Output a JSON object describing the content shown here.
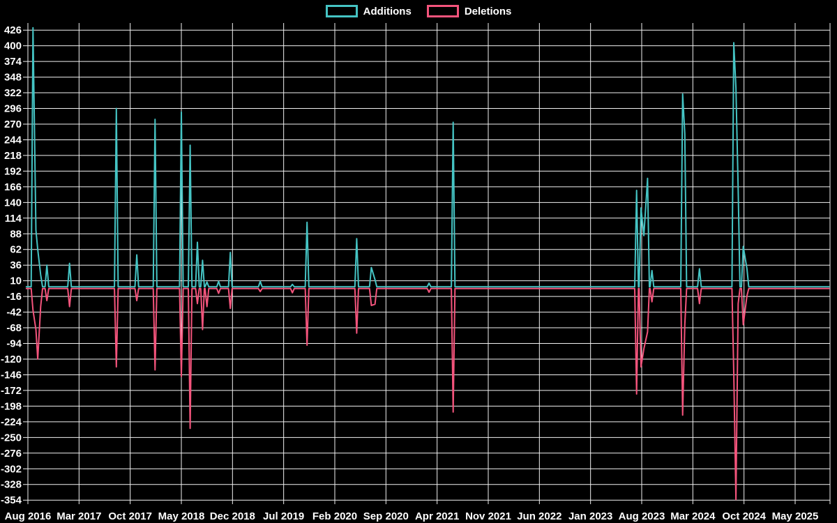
{
  "page": {
    "background": "#000000",
    "text_color": "#ffffff"
  },
  "chart_data": {
    "type": "line",
    "title": "",
    "legend_position": "top-center",
    "grid": "on",
    "grid_color": "#f2f2f2",
    "text_color": "#ffffff",
    "series": [
      {
        "name": "Additions",
        "color": "#45c4c4"
      },
      {
        "name": "Deletions",
        "color": "#f4547c"
      }
    ],
    "x_axis": {
      "unit": "months (7-month tick interval)",
      "tick_labels": [
        "Aug 2016",
        "Mar 2017",
        "Oct 2017",
        "May 2018",
        "Dec 2018",
        "Jul 2019",
        "Feb 2020",
        "Sep 2020",
        "Apr 2021",
        "Nov 2021",
        "Jun 2022",
        "Jan 2023",
        "Aug 2023",
        "Mar 2024",
        "Oct 2024",
        "May 2025"
      ]
    },
    "y_axis": {
      "max": 426,
      "min": -354,
      "step": 26,
      "tick_labels": [
        "426",
        "400",
        "374",
        "348",
        "322",
        "296",
        "270",
        "244",
        "218",
        "192",
        "166",
        "140",
        "114",
        "88",
        "62",
        "36",
        "10",
        "-16",
        "-42",
        "-68",
        "-94",
        "-120",
        "-146",
        "-172",
        "-198",
        "-224",
        "-250",
        "-276",
        "-302",
        "-328",
        "-354"
      ]
    },
    "x_domain_months": [
      -0.3,
      109.7
    ],
    "points": [
      {
        "m": 0.7,
        "add": 430,
        "del": -36
      },
      {
        "m": 1.1,
        "add": 94,
        "del": -68
      },
      {
        "m": 1.35,
        "add": 62,
        "del": -117
      },
      {
        "m": 1.75,
        "add": 20,
        "del": -30
      },
      {
        "m": 2.6,
        "add": 36,
        "del": -20
      },
      {
        "m": 5.7,
        "add": 39,
        "del": -30
      },
      {
        "m": 12.1,
        "add": 296,
        "del": -130
      },
      {
        "m": 14.9,
        "add": 53,
        "del": -20
      },
      {
        "m": 17.4,
        "add": 278,
        "del": -135
      },
      {
        "m": 21.0,
        "add": 290,
        "del": -146
      },
      {
        "m": 22.2,
        "add": 235,
        "del": -232
      },
      {
        "m": 23.2,
        "add": 74,
        "del": -25
      },
      {
        "m": 23.9,
        "add": 44,
        "del": -68
      },
      {
        "m": 24.5,
        "add": 8,
        "del": -30
      },
      {
        "m": 26.1,
        "add": 9,
        "del": -8
      },
      {
        "m": 27.7,
        "add": 57,
        "del": -33
      },
      {
        "m": 31.8,
        "add": 9,
        "del": -5
      },
      {
        "m": 36.2,
        "add": 4,
        "del": -7
      },
      {
        "m": 38.2,
        "add": 107,
        "del": -94
      },
      {
        "m": 45.0,
        "add": 80,
        "del": -74
      },
      {
        "m": 47.0,
        "add": 32,
        "del": -28
      },
      {
        "m": 47.5,
        "add": 12,
        "del": -26
      },
      {
        "m": 54.9,
        "add": 6,
        "del": -6
      },
      {
        "m": 58.2,
        "add": 273,
        "del": -205
      },
      {
        "m": 83.3,
        "add": 160,
        "del": -175
      },
      {
        "m": 83.9,
        "add": 131,
        "del": -130
      },
      {
        "m": 84.3,
        "add": 85,
        "del": -100
      },
      {
        "m": 84.8,
        "add": 180,
        "del": -72
      },
      {
        "m": 85.4,
        "add": 27,
        "del": -22
      },
      {
        "m": 89.6,
        "add": 320,
        "del": -210
      },
      {
        "m": 89.9,
        "add": 254,
        "del": -60
      },
      {
        "m": 91.9,
        "add": 30,
        "del": -25
      },
      {
        "m": 96.6,
        "add": 405,
        "del": -140
      },
      {
        "m": 96.9,
        "add": 330,
        "del": -350
      },
      {
        "m": 97.2,
        "add": 163,
        "del": -25
      },
      {
        "m": 97.9,
        "add": 67,
        "del": -60
      },
      {
        "m": 98.4,
        "add": 30,
        "del": -12
      }
    ]
  }
}
